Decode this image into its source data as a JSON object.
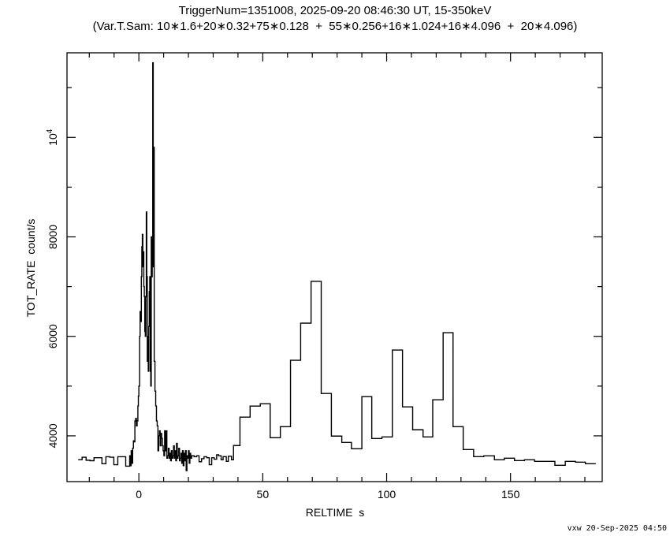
{
  "chart_data": {
    "type": "line",
    "step": true,
    "title": "TriggerNum=1351008, 2025-09-20 08:46:30 UT, 15-350keV",
    "subtitle": "(Var.T.Sam: 10∗1.6+20∗0.32+75∗0.128  +  55∗0.256+16∗1.024+16∗4.096  +  20∗4.096)",
    "xlabel": "RELTIME  s",
    "ylabel": "TOT_RATE  count/s",
    "xlim": [
      -29,
      187
    ],
    "ylim": [
      3080,
      11700
    ],
    "x_ticks": [
      {
        "v": 0,
        "label": "0"
      },
      {
        "v": 50,
        "label": "50"
      },
      {
        "v": 100,
        "label": "100"
      },
      {
        "v": 150,
        "label": "150"
      }
    ],
    "y_ticks": [
      {
        "v": 4000,
        "label": "4000"
      },
      {
        "v": 6000,
        "label": "6000"
      },
      {
        "v": 8000,
        "label": "8000"
      },
      {
        "v": 10000,
        "label": "10",
        "sup": "4"
      }
    ],
    "x_minor_step": 10,
    "y_minor_step": 1000,
    "grid": false,
    "line_color": "#000000",
    "bin_start_time_and_rate": [
      [
        -24.5,
        3520
      ],
      [
        -22.9,
        3570
      ],
      [
        -21.3,
        3510
      ],
      [
        -19.7,
        3500
      ],
      [
        -18.1,
        3560
      ],
      [
        -16.5,
        3560
      ],
      [
        -14.9,
        3440
      ],
      [
        -13.3,
        3580
      ],
      [
        -11.7,
        3570
      ],
      [
        -10.1,
        3420
      ],
      [
        -8.5,
        3580
      ],
      [
        -6.9,
        3580
      ],
      [
        -5.3,
        3390
      ],
      [
        -3.7,
        3600
      ],
      [
        -3.4,
        3400
      ],
      [
        -3.1,
        3700
      ],
      [
        -2.8,
        3450
      ],
      [
        -2.5,
        3750
      ],
      [
        -2.2,
        3900
      ],
      [
        -1.9,
        3880
      ],
      [
        -1.6,
        4300
      ],
      [
        -1.3,
        4350
      ],
      [
        -1.0,
        4200
      ],
      [
        -0.7,
        4300
      ],
      [
        -0.4,
        4600
      ],
      [
        -0.2,
        4800
      ],
      [
        0,
        5000
      ],
      [
        0.3,
        6000
      ],
      [
        0.5,
        6500
      ],
      [
        0.8,
        6300
      ],
      [
        1.0,
        7200
      ],
      [
        1.2,
        7800
      ],
      [
        1.4,
        8050
      ],
      [
        1.6,
        7400
      ],
      [
        1.8,
        7700
      ],
      [
        2.0,
        7000
      ],
      [
        2.2,
        6800
      ],
      [
        2.4,
        6100
      ],
      [
        2.6,
        6000
      ],
      [
        2.8,
        6800
      ],
      [
        3.0,
        8500
      ],
      [
        3.2,
        7200
      ],
      [
        3.4,
        5500
      ],
      [
        3.6,
        6000
      ],
      [
        3.8,
        5300
      ],
      [
        4.0,
        6200
      ],
      [
        4.2,
        6900
      ],
      [
        4.4,
        7200
      ],
      [
        4.6,
        5300
      ],
      [
        4.8,
        5000
      ],
      [
        5.0,
        8000
      ],
      [
        5.2,
        7200
      ],
      [
        5.4,
        7400
      ],
      [
        5.6,
        11500
      ],
      [
        5.8,
        7400
      ],
      [
        6.0,
        9800
      ],
      [
        6.2,
        5500
      ],
      [
        6.5,
        4900
      ],
      [
        6.8,
        4600
      ],
      [
        7.1,
        4300
      ],
      [
        7.4,
        4200
      ],
      [
        7.7,
        3700
      ],
      [
        8.0,
        4000
      ],
      [
        8.3,
        4100
      ],
      [
        8.6,
        3800
      ],
      [
        8.9,
        4050
      ],
      [
        9.2,
        3950
      ],
      [
        9.5,
        3800
      ],
      [
        9.8,
        3700
      ],
      [
        10.1,
        3600
      ],
      [
        10.4,
        4100
      ],
      [
        10.7,
        3700
      ],
      [
        11.0,
        4100
      ],
      [
        11.3,
        3550
      ],
      [
        11.6,
        3600
      ],
      [
        11.9,
        3750
      ],
      [
        12.2,
        3550
      ],
      [
        12.5,
        3650
      ],
      [
        12.8,
        3500
      ],
      [
        13.1,
        3700
      ],
      [
        13.4,
        3550
      ],
      [
        13.7,
        3600
      ],
      [
        14.0,
        3800
      ],
      [
        14.3,
        3550
      ],
      [
        14.6,
        3700
      ],
      [
        14.9,
        3500
      ],
      [
        15.2,
        3850
      ],
      [
        15.5,
        3550
      ],
      [
        15.8,
        3600
      ],
      [
        16.1,
        3750
      ],
      [
        16.4,
        3500
      ],
      [
        16.7,
        3550
      ],
      [
        17.0,
        3650
      ],
      [
        17.3,
        3450
      ],
      [
        17.6,
        3700
      ],
      [
        17.9,
        3400
      ],
      [
        18.2,
        3650
      ],
      [
        18.5,
        3500
      ],
      [
        18.8,
        3700
      ],
      [
        19.1,
        3300
      ],
      [
        19.4,
        3600
      ],
      [
        19.7,
        3550
      ],
      [
        20.0,
        3700
      ],
      [
        20.3,
        3450
      ],
      [
        20.6,
        3650
      ],
      [
        20.9,
        3550
      ],
      [
        21.3,
        3600
      ],
      [
        22.3,
        3580
      ],
      [
        23.3,
        3600
      ],
      [
        24.3,
        3480
      ],
      [
        25.3,
        3540
      ],
      [
        26.3,
        3580
      ],
      [
        27.4,
        3560
      ],
      [
        28.4,
        3420
      ],
      [
        29.4,
        3560
      ],
      [
        30.4,
        3530
      ],
      [
        31.4,
        3620
      ],
      [
        32.2,
        3600
      ],
      [
        33.2,
        3519
      ],
      [
        34.0,
        3582
      ],
      [
        35.3,
        3487
      ],
      [
        36.1,
        3590
      ],
      [
        37.4,
        3519
      ],
      [
        38.2,
        3805
      ],
      [
        40.8,
        4376
      ],
      [
        44.9,
        4598
      ],
      [
        49.0,
        4646
      ],
      [
        53.0,
        3963
      ],
      [
        57.1,
        4185
      ],
      [
        61.2,
        5519
      ],
      [
        65.3,
        6265
      ],
      [
        69.5,
        7106
      ],
      [
        73.6,
        4852
      ],
      [
        77.7,
        3995
      ],
      [
        81.9,
        3868
      ],
      [
        85.8,
        3741
      ],
      [
        90.0,
        4789
      ],
      [
        94.0,
        3947
      ],
      [
        98.1,
        3979
      ],
      [
        102.3,
        5725
      ],
      [
        106.4,
        4582
      ],
      [
        110.5,
        4122
      ],
      [
        114.7,
        3979
      ],
      [
        118.6,
        4725
      ],
      [
        122.8,
        6074
      ],
      [
        126.8,
        4185
      ],
      [
        130.9,
        3725
      ],
      [
        135.1,
        3582
      ],
      [
        139.2,
        3598
      ],
      [
        143.5,
        3519
      ],
      [
        147.5,
        3550
      ],
      [
        151.6,
        3503
      ],
      [
        155.6,
        3519
      ],
      [
        159.7,
        3487
      ],
      [
        163.9,
        3487
      ],
      [
        167.9,
        3408
      ],
      [
        172.1,
        3487
      ],
      [
        176.2,
        3471
      ],
      [
        180.2,
        3440
      ]
    ],
    "last_bin_end": 184.4
  },
  "footer": "vxw 20-Sep-2025 04:50"
}
